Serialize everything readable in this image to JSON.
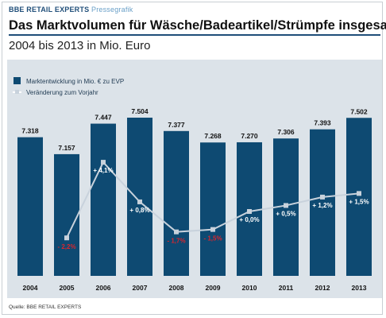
{
  "header": {
    "brand_main": "BBE RETAIL EXPERTS",
    "brand_sub": "Pressegrafik",
    "title": "Das Marktvolumen für Wäsche/Badeartikel/Strümpfe insgesamt",
    "subtitle": "2004 bis 2013 in Mio. Euro"
  },
  "footer": {
    "source_prefix": "Quelle:",
    "source_name": "BBE RETAIL EXPERTS"
  },
  "colors": {
    "bar": "#0e4a72",
    "line": "#c8d2dc",
    "negative": "#d9262e",
    "panel": "#dce3e9"
  },
  "chart_data": {
    "type": "bar",
    "categories": [
      "2004",
      "2005",
      "2006",
      "2007",
      "2008",
      "2009",
      "2010",
      "2011",
      "2012",
      "2013"
    ],
    "series": [
      {
        "name": "Marktentwicklung in Mio. € zu EVP",
        "type": "bar",
        "values": [
          7318,
          7157,
          7447,
          7504,
          7377,
          7268,
          7270,
          7306,
          7393,
          7502
        ],
        "labels": [
          "7.318",
          "7.157",
          "7.447",
          "7.504",
          "7.377",
          "7.268",
          "7.270",
          "7.306",
          "7.393",
          "7.502"
        ]
      },
      {
        "name": "Veränderung zum Vorjahr",
        "type": "line",
        "values": [
          null,
          -2.2,
          4.1,
          0.8,
          -1.7,
          -1.5,
          0.0,
          0.5,
          1.2,
          1.5
        ],
        "labels": [
          "",
          "- 2,2%",
          "+ 4,1%",
          "+ 0,8%",
          "- 1,7%",
          "- 1,5%",
          "+ 0,0%",
          "+ 0,5%",
          "+ 1,2%",
          "+ 1,5%"
        ]
      }
    ],
    "legend": "top-left",
    "grid": false
  }
}
